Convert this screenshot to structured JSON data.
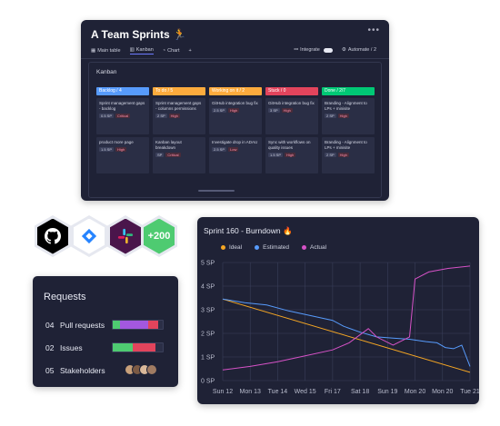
{
  "kanban": {
    "title": "A Team Sprints 🏃",
    "more": "•••",
    "tabs": [
      {
        "icon": "table-icon",
        "label": "Main table"
      },
      {
        "icon": "kanban-icon",
        "label": "Kanban"
      },
      {
        "icon": "chart-icon",
        "label": "Chart"
      },
      {
        "icon": "plus-icon",
        "label": "+"
      }
    ],
    "integrate_label": "Integrate",
    "automate_label": "Automate / 2",
    "board_title": "Kanban",
    "columns": [
      {
        "label": "Backlog / 4",
        "color": "#579bfc",
        "cards": [
          {
            "title": "Sprint management gaps - backlog",
            "sp": "0.5 SP",
            "prio": "Critical"
          },
          {
            "title": "product more page",
            "sp": "1.5 SP",
            "prio": "High"
          }
        ]
      },
      {
        "label": "To do / 5",
        "color": "#fdab3d",
        "cards": [
          {
            "title": "Sprint management gaps - columns permissions",
            "sp": "2 SP",
            "prio": "High"
          },
          {
            "title": "Kanban layout breakdown",
            "sp": "SP",
            "prio": "Critical"
          }
        ]
      },
      {
        "label": "Working on it / 2",
        "color": "#fdab3d",
        "cards": [
          {
            "title": "GitHub integration bug fix",
            "sp": "2.5 SP",
            "prio": "High"
          },
          {
            "title": "Investigate drop in ADAU",
            "sp": "2.5 SP",
            "prio": "Low"
          }
        ]
      },
      {
        "label": "Stuck / 0",
        "color": "#e2445c",
        "cards": [
          {
            "title": "GitHub integration bug fix",
            "sp": "3 SP",
            "prio": "High"
          },
          {
            "title": "Sync with workflows on quality issues",
            "sp": "1.5 SP",
            "prio": "High"
          }
        ]
      },
      {
        "label": "Done / 2/7",
        "color": "#00c875",
        "cards": [
          {
            "title": "Branding - Alignment to LPs + minisite",
            "sp": "2 SP",
            "prio": "High"
          },
          {
            "title": "Branding - Alignment to LPs + minisite",
            "sp": "2 SP",
            "prio": "High"
          }
        ]
      }
    ]
  },
  "integrations": {
    "icons": [
      "github-icon",
      "jira-icon",
      "slack-icon"
    ],
    "more_label": "+200",
    "colors": {
      "github": "#000000",
      "jira": "#2684ff",
      "slack": "#4a154b",
      "more": "#4ecb71"
    }
  },
  "requests": {
    "title": "Requests",
    "rows": [
      {
        "num": "04",
        "label": "Pull requests",
        "segments": [
          {
            "color": "#4ecb71",
            "pct": 15
          },
          {
            "color": "#a358df",
            "pct": 55
          },
          {
            "color": "#e2445c",
            "pct": 20
          }
        ]
      },
      {
        "num": "02",
        "label": "Issues",
        "segments": [
          {
            "color": "#4ecb71",
            "pct": 40
          },
          {
            "color": "#e2445c",
            "pct": 45
          }
        ]
      },
      {
        "num": "05",
        "label": "Stakeholders",
        "avatars": 4
      }
    ]
  },
  "burndown": {
    "title": "Sprint 160 - Burndown 🔥",
    "legend": [
      {
        "name": "Ideal",
        "color": "#f5a623"
      },
      {
        "name": "Estimated",
        "color": "#579bfc"
      },
      {
        "name": "Actual",
        "color": "#d652c7"
      }
    ],
    "chart_data": {
      "type": "line",
      "x": [
        "Sun 12",
        "Mon 13",
        "Tue 14",
        "Wed 15",
        "Fri 17",
        "Sat 18",
        "Sun 19",
        "Mon 20",
        "Mon 20",
        "Tue 21"
      ],
      "ylim": [
        0,
        5
      ],
      "yticks": [
        "0 SP",
        "1 SP",
        "2 SP",
        "3 SP",
        "4 SP",
        "5 SP"
      ],
      "series": [
        {
          "name": "Ideal",
          "color": "#f5a623",
          "points": [
            [
              0,
              3.45
            ],
            [
              9,
              0.35
            ]
          ]
        },
        {
          "name": "Estimated",
          "color": "#579bfc",
          "points": [
            [
              0,
              3.45
            ],
            [
              0.8,
              3.3
            ],
            [
              1.6,
              3.2
            ],
            [
              2.4,
              2.95
            ],
            [
              3.2,
              2.75
            ],
            [
              4,
              2.55
            ],
            [
              4.4,
              2.3
            ],
            [
              5,
              2.05
            ],
            [
              5.6,
              1.85
            ],
            [
              6.2,
              1.8
            ],
            [
              6.8,
              1.75
            ],
            [
              7.4,
              1.65
            ],
            [
              7.8,
              1.6
            ],
            [
              8.1,
              1.4
            ],
            [
              8.4,
              1.35
            ],
            [
              8.7,
              1.5
            ],
            [
              9,
              0.6
            ]
          ]
        },
        {
          "name": "Actual",
          "color": "#d652c7",
          "points": [
            [
              0,
              0.45
            ],
            [
              1,
              0.6
            ],
            [
              2,
              0.8
            ],
            [
              3,
              1.05
            ],
            [
              4,
              1.3
            ],
            [
              4.6,
              1.6
            ],
            [
              5.3,
              2.2
            ],
            [
              5.6,
              1.85
            ],
            [
              6.2,
              1.5
            ],
            [
              6.8,
              1.85
            ],
            [
              7,
              4.3
            ],
            [
              7.5,
              4.6
            ],
            [
              8.2,
              4.75
            ],
            [
              9,
              4.85
            ]
          ]
        }
      ]
    }
  }
}
